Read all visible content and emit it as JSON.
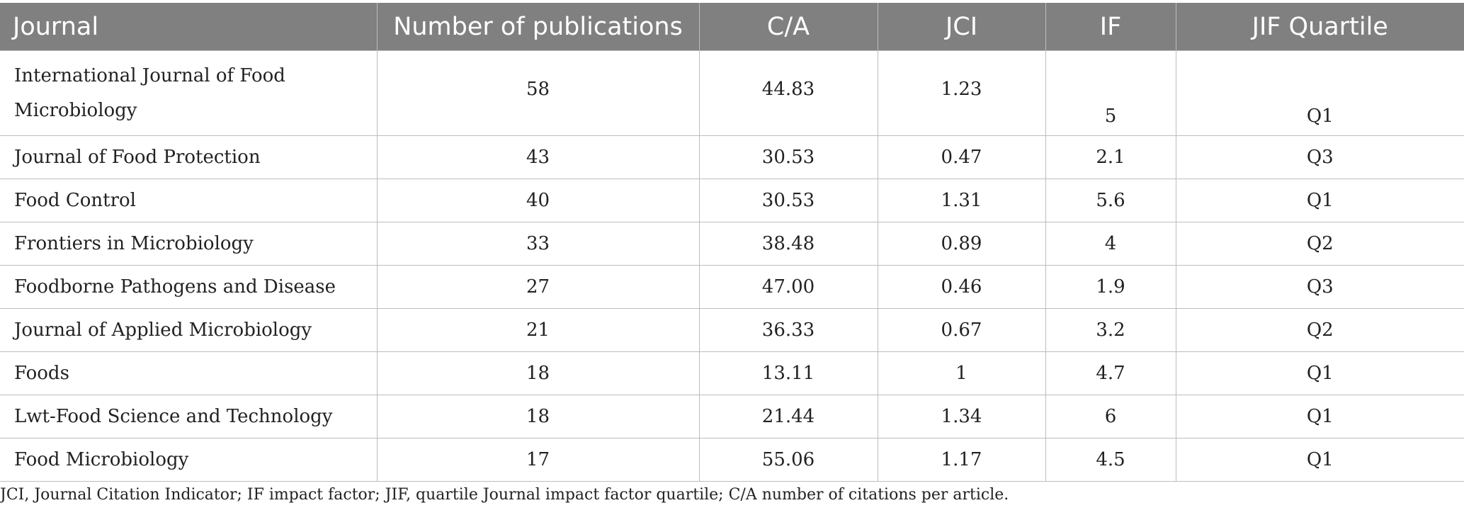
{
  "table": {
    "headers": {
      "journal": "Journal",
      "publications": "Number of publications",
      "ca": "C/A",
      "jci": "JCI",
      "if": "IF",
      "quartile": "JIF Quartile"
    },
    "rows": [
      {
        "journal": "International Journal of Food Microbiology",
        "publications": "58",
        "ca": "44.83",
        "jci": "1.23",
        "if": "5",
        "quartile": "Q1"
      },
      {
        "journal": "Journal of Food Protection",
        "publications": "43",
        "ca": "30.53",
        "jci": "0.47",
        "if": "2.1",
        "quartile": "Q3"
      },
      {
        "journal": "Food Control",
        "publications": "40",
        "ca": "30.53",
        "jci": "1.31",
        "if": "5.6",
        "quartile": "Q1"
      },
      {
        "journal": "Frontiers in Microbiology",
        "publications": "33",
        "ca": "38.48",
        "jci": "0.89",
        "if": "4",
        "quartile": "Q2"
      },
      {
        "journal": "Foodborne Pathogens and Disease",
        "publications": "27",
        "ca": "47.00",
        "jci": "0.46",
        "if": "1.9",
        "quartile": "Q3"
      },
      {
        "journal": "Journal of Applied Microbiology",
        "publications": "21",
        "ca": "36.33",
        "jci": "0.67",
        "if": "3.2",
        "quartile": "Q2"
      },
      {
        "journal": "Foods",
        "publications": "18",
        "ca": "13.11",
        "jci": "1",
        "if": "4.7",
        "quartile": "Q1"
      },
      {
        "journal": "Lwt-Food Science and Technology",
        "publications": "18",
        "ca": "21.44",
        "jci": "1.34",
        "if": "6",
        "quartile": "Q1"
      },
      {
        "journal": "Food Microbiology",
        "publications": "17",
        "ca": "55.06",
        "jci": "1.17",
        "if": "4.5",
        "quartile": "Q1"
      }
    ]
  },
  "footnote": "JCI, Journal Citation Indicator; IF impact factor; JIF, quartile Journal impact factor quartile; C/A number of citations per article.",
  "colors": {
    "header_bg": "#808080",
    "header_text": "#ffffff",
    "border": "#bdbdbd",
    "body_text": "#222222"
  }
}
